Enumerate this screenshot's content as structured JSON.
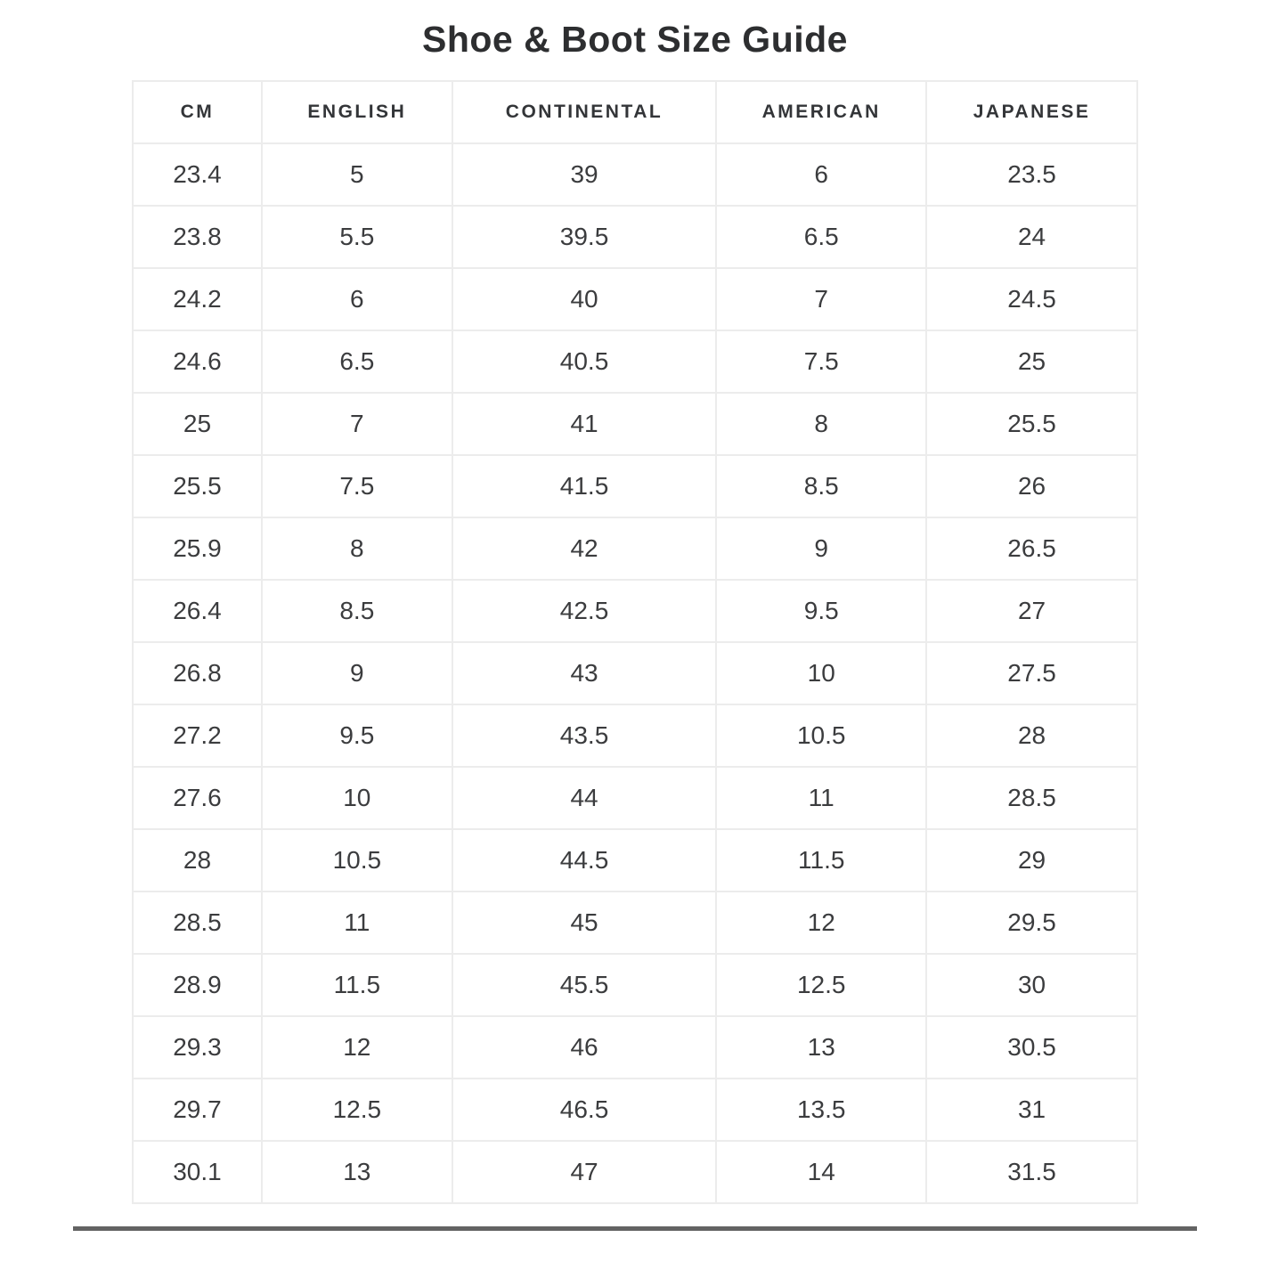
{
  "page": {
    "title": "Shoe & Boot Size Guide"
  },
  "chart_data": {
    "type": "table",
    "title": "Shoe & Boot Size Guide",
    "columns": [
      "CM",
      "ENGLISH",
      "CONTINENTAL",
      "AMERICAN",
      "JAPANESE"
    ],
    "rows": [
      [
        "23.4",
        "5",
        "39",
        "6",
        "23.5"
      ],
      [
        "23.8",
        "5.5",
        "39.5",
        "6.5",
        "24"
      ],
      [
        "24.2",
        "6",
        "40",
        "7",
        "24.5"
      ],
      [
        "24.6",
        "6.5",
        "40.5",
        "7.5",
        "25"
      ],
      [
        "25",
        "7",
        "41",
        "8",
        "25.5"
      ],
      [
        "25.5",
        "7.5",
        "41.5",
        "8.5",
        "26"
      ],
      [
        "25.9",
        "8",
        "42",
        "9",
        "26.5"
      ],
      [
        "26.4",
        "8.5",
        "42.5",
        "9.5",
        "27"
      ],
      [
        "26.8",
        "9",
        "43",
        "10",
        "27.5"
      ],
      [
        "27.2",
        "9.5",
        "43.5",
        "10.5",
        "28"
      ],
      [
        "27.6",
        "10",
        "44",
        "11",
        "28.5"
      ],
      [
        "28",
        "10.5",
        "44.5",
        "11.5",
        "29"
      ],
      [
        "28.5",
        "11",
        "45",
        "12",
        "29.5"
      ],
      [
        "28.9",
        "11.5",
        "45.5",
        "12.5",
        "30"
      ],
      [
        "29.3",
        "12",
        "46",
        "13",
        "30.5"
      ],
      [
        "29.7",
        "12.5",
        "46.5",
        "13.5",
        "31"
      ],
      [
        "30.1",
        "13",
        "47",
        "14",
        "31.5"
      ]
    ]
  },
  "colors": {
    "background": "#ffffff",
    "title_text": "#2d2e30",
    "header_text": "#333538",
    "body_text": "#3b3c3e",
    "grid_border": "#ececec",
    "scrollbar": "#636363"
  }
}
